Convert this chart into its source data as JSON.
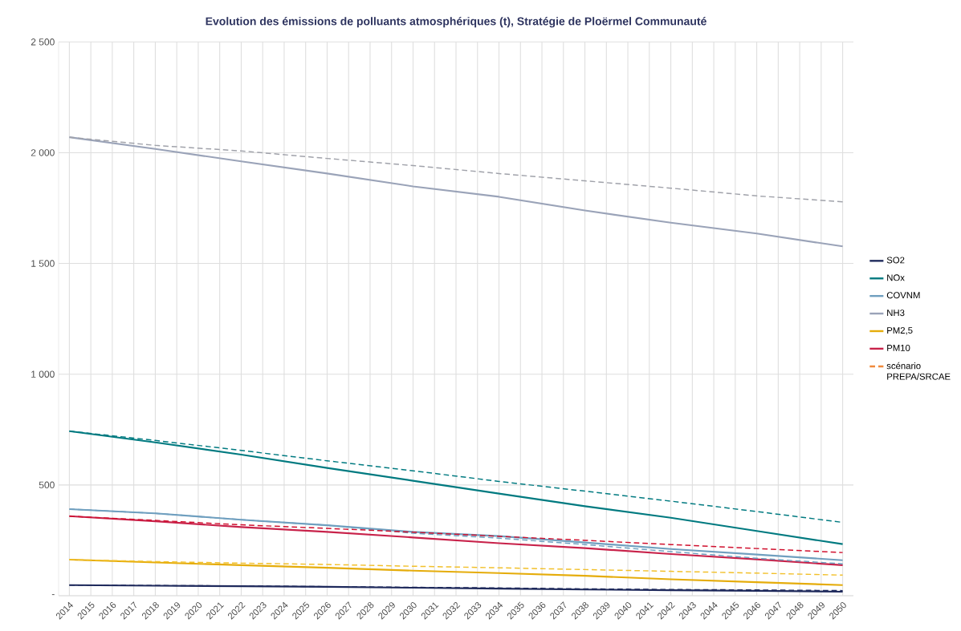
{
  "chart_data": {
    "type": "line",
    "title": "Evolution des émissions de polluants atmosphériques (t), Stratégie de Ploërmel Communauté",
    "xlim": [
      2013.5,
      2050.5
    ],
    "xticks": [
      2014,
      2015,
      2016,
      2017,
      2018,
      2019,
      2020,
      2021,
      2022,
      2023,
      2024,
      2025,
      2026,
      2027,
      2028,
      2029,
      2030,
      2031,
      2032,
      2033,
      2034,
      2035,
      2036,
      2037,
      2038,
      2039,
      2040,
      2041,
      2042,
      2043,
      2044,
      2045,
      2046,
      2047,
      2048,
      2049,
      2050
    ],
    "ylim": [
      0,
      2500
    ],
    "yticks": [
      {
        "value": 0,
        "label": "-"
      },
      500,
      {
        "value": 1000,
        "label": "1 000"
      },
      {
        "value": 1500,
        "label": "1 500"
      },
      {
        "value": 2000,
        "label": "2 000"
      },
      {
        "value": 2500,
        "label": "2 500"
      }
    ],
    "grid": true,
    "legend": "right",
    "series": [
      {
        "name": "SO2",
        "color": "#1f2a5c",
        "line_style": "solid",
        "x": [
          2014,
          2018,
          2022,
          2026,
          2030,
          2034,
          2038,
          2042,
          2046,
          2050
        ],
        "values": [
          48,
          45,
          43,
          40,
          36,
          32,
          28,
          25,
          22,
          18
        ]
      },
      {
        "name": "NOx",
        "color": "#007a80",
        "line_style": "solid",
        "x": [
          2014,
          2018,
          2022,
          2026,
          2030,
          2034,
          2038,
          2042,
          2046,
          2050
        ],
        "values": [
          743,
          692,
          637,
          577,
          519,
          461,
          404,
          352,
          292,
          233
        ]
      },
      {
        "name": "COVNM",
        "color": "#6f9fbf",
        "line_style": "solid",
        "x": [
          2014,
          2018,
          2022,
          2026,
          2030,
          2034,
          2038,
          2042,
          2046,
          2050
        ],
        "values": [
          391,
          372,
          343,
          318,
          288,
          269,
          240,
          211,
          186,
          160
        ]
      },
      {
        "name": "NH3",
        "color": "#9aa3b8",
        "line_style": "solid",
        "x": [
          2014,
          2018,
          2022,
          2026,
          2030,
          2034,
          2038,
          2042,
          2046,
          2050
        ],
        "values": [
          2070,
          2017,
          1961,
          1906,
          1848,
          1801,
          1739,
          1684,
          1635,
          1577
        ]
      },
      {
        "name": "PM2,5",
        "color": "#e5ac0a",
        "line_style": "solid",
        "x": [
          2014,
          2018,
          2022,
          2026,
          2030,
          2034,
          2038,
          2042,
          2046,
          2050
        ],
        "values": [
          163,
          150,
          138,
          126,
          113,
          102,
          90,
          74,
          61,
          48
        ]
      },
      {
        "name": "PM10",
        "color": "#c8224a",
        "line_style": "solid",
        "x": [
          2014,
          2018,
          2022,
          2026,
          2030,
          2034,
          2038,
          2042,
          2046,
          2050
        ],
        "values": [
          359,
          336,
          310,
          288,
          263,
          237,
          215,
          188,
          164,
          138
        ]
      },
      {
        "color": "#1f2a5c",
        "line_style": "dashed",
        "x": [
          2014,
          2018,
          2022,
          2026,
          2030,
          2034,
          2038,
          2042,
          2046,
          2050
        ],
        "values": [
          48,
          46,
          44,
          41,
          38,
          35,
          31,
          28,
          26,
          23
        ]
      },
      {
        "color": "#007a80",
        "line_style": "dashed",
        "x": [
          2014,
          2018,
          2022,
          2026,
          2030,
          2034,
          2038,
          2042,
          2046,
          2050
        ],
        "values": [
          743,
          701,
          656,
          609,
          564,
          516,
          472,
          427,
          380,
          331
        ]
      },
      {
        "color": "#6f9fbf",
        "line_style": "dashed",
        "x": [
          2014,
          2018,
          2022,
          2026,
          2030,
          2034,
          2038,
          2042,
          2046,
          2050
        ],
        "values": [
          391,
          372,
          343,
          318,
          282,
          260,
          231,
          199,
          169,
          144
        ]
      },
      {
        "color": "#a0a2aa",
        "line_style": "dashed",
        "x": [
          2014,
          2018,
          2022,
          2026,
          2030,
          2034,
          2038,
          2042,
          2046,
          2050
        ],
        "values": [
          2070,
          2033,
          2008,
          1974,
          1942,
          1906,
          1873,
          1840,
          1805,
          1778
        ]
      },
      {
        "color": "#f2c02a",
        "line_style": "dashed",
        "x": [
          2014,
          2018,
          2022,
          2026,
          2030,
          2034,
          2038,
          2042,
          2046,
          2050
        ],
        "values": [
          163,
          154,
          147,
          141,
          133,
          126,
          118,
          110,
          102,
          93
        ]
      },
      {
        "color": "#d0102e",
        "line_style": "dashed",
        "x": [
          2014,
          2018,
          2022,
          2026,
          2030,
          2034,
          2038,
          2042,
          2046,
          2050
        ],
        "values": [
          359,
          340,
          320,
          304,
          287,
          268,
          250,
          231,
          213,
          195
        ]
      },
      {
        "name": "scénario PREPA/SRCAE",
        "color": "#f08a3c",
        "line_style": "dashed"
      }
    ]
  }
}
